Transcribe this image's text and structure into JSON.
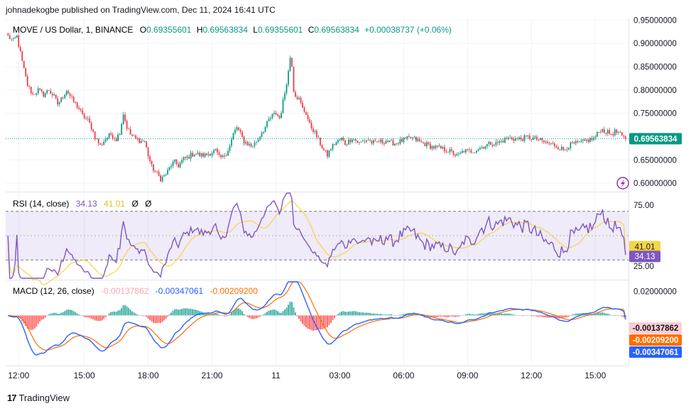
{
  "attribution": "johnadekogbe published on TradingView.com, Dec 11, 2024 16:41 UTC",
  "footer": {
    "brand": "TradingView",
    "logo_glyph": "17"
  },
  "colors": {
    "up": "#089981",
    "down": "#f23645",
    "rsi": "#7e57c2",
    "rsi_ma": "#f5d547",
    "macd": "#2962ff",
    "signal": "#ff6d00",
    "hist_pos": "#26a69a",
    "hist_neg": "#ff5252",
    "price_line": "#089981",
    "hist_label_bg": "#ffcdd2"
  },
  "price_pane": {
    "symbol": "MOVE / US Dollar, 1, BINANCE",
    "o_label": "O",
    "o_value": "0.69355601",
    "h_label": "H",
    "h_value": "0.69563834",
    "l_label": "L",
    "l_value": "0.69355601",
    "c_label": "C",
    "c_value": "0.69563834",
    "change": "+0.00038737 (+0.06%)",
    "current_price": "0.69563834"
  },
  "rsi_pane": {
    "title": "RSI (14, close)",
    "rsi_value": "34.13",
    "ma_value": "41.01",
    "extra1": "Ø",
    "extra2": "Ø"
  },
  "macd_pane": {
    "title": "MACD (12, 26, close)",
    "hist_value": "-0.00137862",
    "macd_value": "-0.00347061",
    "signal_value": "-0.00209200"
  },
  "chart_data": {
    "type": "candlestick",
    "price": {
      "y_ticks": [
        "0.95000000",
        "0.90000000",
        "0.85000000",
        "0.80000000",
        "0.75000000",
        "0.70000000",
        "0.65000000",
        "0.60000000"
      ],
      "ylim": [
        0.585,
        0.955
      ],
      "current": 0.69563834,
      "close_path": [
        [
          0,
          0.915
        ],
        [
          3,
          0.905
        ],
        [
          5,
          0.915
        ],
        [
          8,
          0.86
        ],
        [
          11,
          0.81
        ],
        [
          14,
          0.79
        ],
        [
          17,
          0.8
        ],
        [
          20,
          0.79
        ],
        [
          23,
          0.8
        ],
        [
          26,
          0.785
        ],
        [
          28,
          0.77
        ],
        [
          30,
          0.78
        ],
        [
          33,
          0.8
        ],
        [
          36,
          0.78
        ],
        [
          38,
          0.77
        ],
        [
          40,
          0.76
        ],
        [
          42,
          0.745
        ],
        [
          45,
          0.735
        ],
        [
          47,
          0.72
        ],
        [
          49,
          0.7
        ],
        [
          52,
          0.68
        ],
        [
          55,
          0.695
        ],
        [
          58,
          0.705
        ],
        [
          61,
          0.695
        ],
        [
          63,
          0.71
        ],
        [
          65,
          0.75
        ],
        [
          67,
          0.72
        ],
        [
          69,
          0.705
        ],
        [
          72,
          0.695
        ],
        [
          75,
          0.69
        ],
        [
          77,
          0.69
        ],
        [
          79,
          0.66
        ],
        [
          81,
          0.635
        ],
        [
          84,
          0.62
        ],
        [
          86,
          0.61
        ],
        [
          88,
          0.615
        ],
        [
          90,
          0.625
        ],
        [
          92,
          0.64
        ],
        [
          94,
          0.645
        ],
        [
          96,
          0.638
        ],
        [
          99,
          0.652
        ],
        [
          101,
          0.655
        ],
        [
          103,
          0.66
        ],
        [
          105,
          0.665
        ],
        [
          108,
          0.66
        ],
        [
          111,
          0.66
        ],
        [
          114,
          0.665
        ],
        [
          117,
          0.67
        ],
        [
          119,
          0.655
        ],
        [
          121,
          0.655
        ],
        [
          123,
          0.665
        ],
        [
          125,
          0.68
        ],
        [
          127,
          0.705
        ],
        [
          129,
          0.72
        ],
        [
          131,
          0.705
        ],
        [
          133,
          0.69
        ],
        [
          135,
          0.685
        ],
        [
          137,
          0.68
        ],
        [
          139,
          0.685
        ],
        [
          141,
          0.695
        ],
        [
          143,
          0.71
        ],
        [
          145,
          0.72
        ],
        [
          147,
          0.735
        ],
        [
          149,
          0.745
        ],
        [
          151,
          0.75
        ],
        [
          153,
          0.74
        ],
        [
          154,
          0.755
        ],
        [
          156,
          0.795
        ],
        [
          158,
          0.84
        ],
        [
          159,
          0.87
        ],
        [
          160,
          0.855
        ],
        [
          161,
          0.8
        ],
        [
          162,
          0.79
        ],
        [
          164,
          0.78
        ],
        [
          166,
          0.76
        ],
        [
          168,
          0.75
        ],
        [
          170,
          0.725
        ],
        [
          172,
          0.715
        ],
        [
          174,
          0.7
        ],
        [
          176,
          0.685
        ],
        [
          178,
          0.67
        ],
        [
          180,
          0.66
        ],
        [
          182,
          0.675
        ],
        [
          184,
          0.685
        ],
        [
          186,
          0.69
        ],
        [
          188,
          0.695
        ],
        [
          190,
          0.685
        ],
        [
          192,
          0.69
        ],
        [
          194,
          0.698
        ],
        [
          196,
          0.692
        ],
        [
          198,
          0.686
        ],
        [
          200,
          0.69
        ],
        [
          203,
          0.694
        ],
        [
          205,
          0.688
        ],
        [
          207,
          0.685
        ],
        [
          209,
          0.69
        ],
        [
          211,
          0.688
        ],
        [
          213,
          0.692
        ],
        [
          215,
          0.687
        ],
        [
          218,
          0.686
        ],
        [
          221,
          0.69
        ],
        [
          224,
          0.694
        ],
        [
          227,
          0.697
        ],
        [
          230,
          0.693
        ],
        [
          233,
          0.687
        ],
        [
          236,
          0.683
        ],
        [
          239,
          0.678
        ],
        [
          242,
          0.676
        ],
        [
          245,
          0.673
        ],
        [
          248,
          0.67
        ],
        [
          251,
          0.664
        ],
        [
          253,
          0.658
        ],
        [
          255,
          0.663
        ],
        [
          257,
          0.67
        ],
        [
          260,
          0.668
        ],
        [
          263,
          0.671
        ],
        [
          266,
          0.676
        ],
        [
          269,
          0.681
        ],
        [
          272,
          0.686
        ],
        [
          275,
          0.685
        ],
        [
          278,
          0.69
        ],
        [
          281,
          0.695
        ],
        [
          284,
          0.697
        ],
        [
          287,
          0.694
        ],
        [
          290,
          0.696
        ],
        [
          293,
          0.699
        ],
        [
          296,
          0.696
        ],
        [
          299,
          0.693
        ],
        [
          302,
          0.688
        ],
        [
          305,
          0.685
        ],
        [
          308,
          0.682
        ],
        [
          311,
          0.676
        ],
        [
          313,
          0.672
        ],
        [
          315,
          0.678
        ],
        [
          318,
          0.684
        ],
        [
          321,
          0.685
        ],
        [
          324,
          0.688
        ],
        [
          327,
          0.693
        ],
        [
          330,
          0.695
        ],
        [
          332,
          0.705
        ],
        [
          334,
          0.715
        ],
        [
          336,
          0.713
        ],
        [
          338,
          0.708
        ],
        [
          340,
          0.706
        ],
        [
          342,
          0.71
        ],
        [
          344,
          0.708
        ],
        [
          346,
          0.699
        ],
        [
          348,
          0.695
        ]
      ],
      "n_bars": 349
    },
    "rsi": {
      "y_ticks": [
        "75.00",
        "25.00"
      ],
      "ylim": [
        15,
        85
      ],
      "upper_band": 70,
      "lower_band": 30,
      "current_rsi": 34.13,
      "current_ma": 41.01
    },
    "macd": {
      "y_ticks": [
        "0.02000000"
      ],
      "ylim": [
        -0.04,
        0.028
      ],
      "current_hist": -0.00137862,
      "current_signal": -0.002092,
      "current_macd": -0.00347061
    },
    "x_ticks": [
      "12:00",
      "15:00",
      "18:00",
      "21:00",
      "11",
      "03:00",
      "06:00",
      "09:00",
      "12:00",
      "15:00"
    ],
    "x_tick_bars": [
      6,
      43,
      79,
      115,
      151,
      187,
      223,
      259,
      295,
      331
    ]
  }
}
